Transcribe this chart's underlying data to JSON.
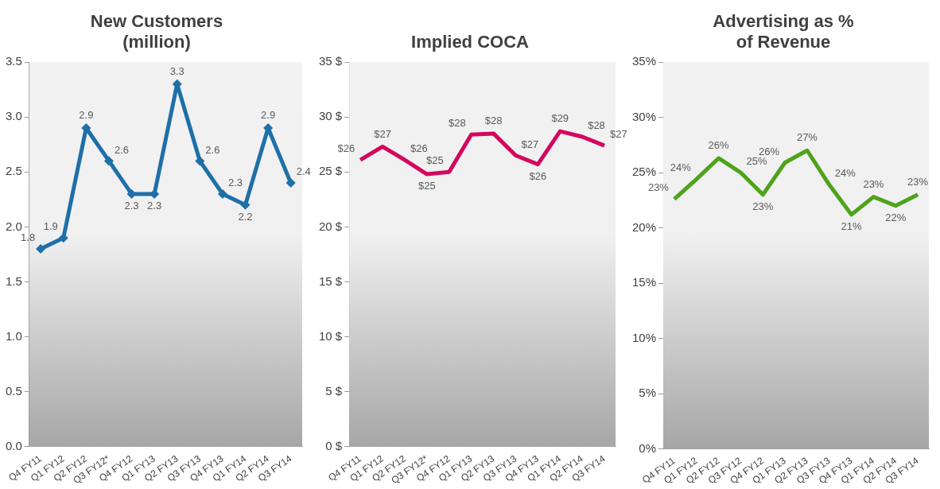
{
  "chart_data": [
    {
      "type": "line",
      "title": "New Customers (million)",
      "categories": [
        "Q4 FY11",
        "Q1 FY12",
        "Q2 FY12",
        "Q3 FY12*",
        "Q4 FY12",
        "Q1 FY13",
        "Q2 FY13",
        "Q3 FY13",
        "Q4 FY13",
        "Q1 FY14",
        "Q2 FY14",
        "Q3 FY14"
      ],
      "series": [
        {
          "color": "#1f6fa8",
          "values": [
            1.8,
            1.9,
            2.9,
            2.6,
            2.3,
            2.3,
            3.3,
            2.6,
            2.3,
            2.2,
            2.9,
            2.4
          ],
          "value_labels": [
            "1.8",
            "1.9",
            "2.9",
            "2.6",
            "2.3",
            "2.3",
            "3.3",
            "2.6",
            "2.3",
            "2.2",
            "2.9",
            "2.4"
          ]
        }
      ],
      "ylim": [
        0,
        3.5
      ],
      "yticks": [
        {
          "value": 0,
          "label": "0.0"
        },
        0.5,
        {
          "value": 1,
          "label": "1.0"
        },
        1.5,
        {
          "value": 2,
          "label": "2.0"
        },
        2.5,
        {
          "value": 3,
          "label": "3.0"
        },
        3.5
      ],
      "grid": false,
      "legend": false,
      "marker": "diamond",
      "line_style": "solid"
    },
    {
      "type": "line",
      "title": "Implied COCA",
      "categories": [
        "Q4 FY11",
        "Q1 FY12",
        "Q2 FY12",
        "Q3 FY12*",
        "Q4 FY12",
        "Q1 FY13",
        "Q2 FY13",
        "Q3 FY13",
        "Q4 FY13",
        "Q1 FY14",
        "Q2 FY14",
        "Q3 FY14"
      ],
      "series": [
        {
          "color": "#d4075e",
          "values": [
            26.1,
            27.3,
            26.1,
            24.8,
            25.0,
            28.4,
            28.5,
            26.5,
            25.7,
            28.7,
            28.2,
            27.4
          ],
          "value_labels": [
            "$26",
            "$27",
            "$26",
            "$25",
            "$25",
            "$28",
            "$28",
            "$27",
            "$26",
            "$29",
            "$28",
            "$27"
          ]
        }
      ],
      "ylim": [
        0,
        35
      ],
      "yticks": [
        {
          "value": 0,
          "label": "0 $"
        },
        {
          "value": 5,
          "label": "5 $"
        },
        {
          "value": 10,
          "label": "10 $"
        },
        {
          "value": 15,
          "label": "15 $"
        },
        {
          "value": 20,
          "label": "20 $"
        },
        {
          "value": 25,
          "label": "25 $"
        },
        {
          "value": 30,
          "label": "30 $"
        },
        {
          "value": 35,
          "label": "35 $"
        }
      ],
      "grid": false,
      "legend": false,
      "marker": "none",
      "line_style": "solid"
    },
    {
      "type": "line",
      "title": "Advertising as % of Revenue",
      "categories": [
        "Q4 FY11",
        "Q1 FY12",
        "Q2 FY12",
        "Q3 FY12",
        "Q4 FY12",
        "Q1 FY13",
        "Q2 FY13",
        "Q3 FY13",
        "Q4 FY13",
        "Q1 FY14",
        "Q2 FY14",
        "Q3 FY14"
      ],
      "series": [
        {
          "color": "#4ea31a",
          "values": [
            22.6,
            24.4,
            26.3,
            25.0,
            23.0,
            25.9,
            27.0,
            23.9,
            21.2,
            22.8,
            22.0,
            23.0
          ],
          "value_labels": [
            "23%",
            "24%",
            "26%",
            "25%",
            "23%",
            "26%",
            "27%",
            "24%",
            "21%",
            "23%",
            "22%",
            "23%"
          ]
        }
      ],
      "ylim": [
        0,
        35
      ],
      "yticks": [
        {
          "value": 0,
          "label": "0%"
        },
        {
          "value": 5,
          "label": "5%"
        },
        {
          "value": 10,
          "label": "10%"
        },
        {
          "value": 15,
          "label": "15%"
        },
        {
          "value": 20,
          "label": "20%"
        },
        {
          "value": 25,
          "label": "25%"
        },
        {
          "value": 30,
          "label": "30%"
        },
        {
          "value": 35,
          "label": "35%"
        }
      ],
      "grid": false,
      "legend": false,
      "marker": "none",
      "line_style": "solid"
    }
  ]
}
